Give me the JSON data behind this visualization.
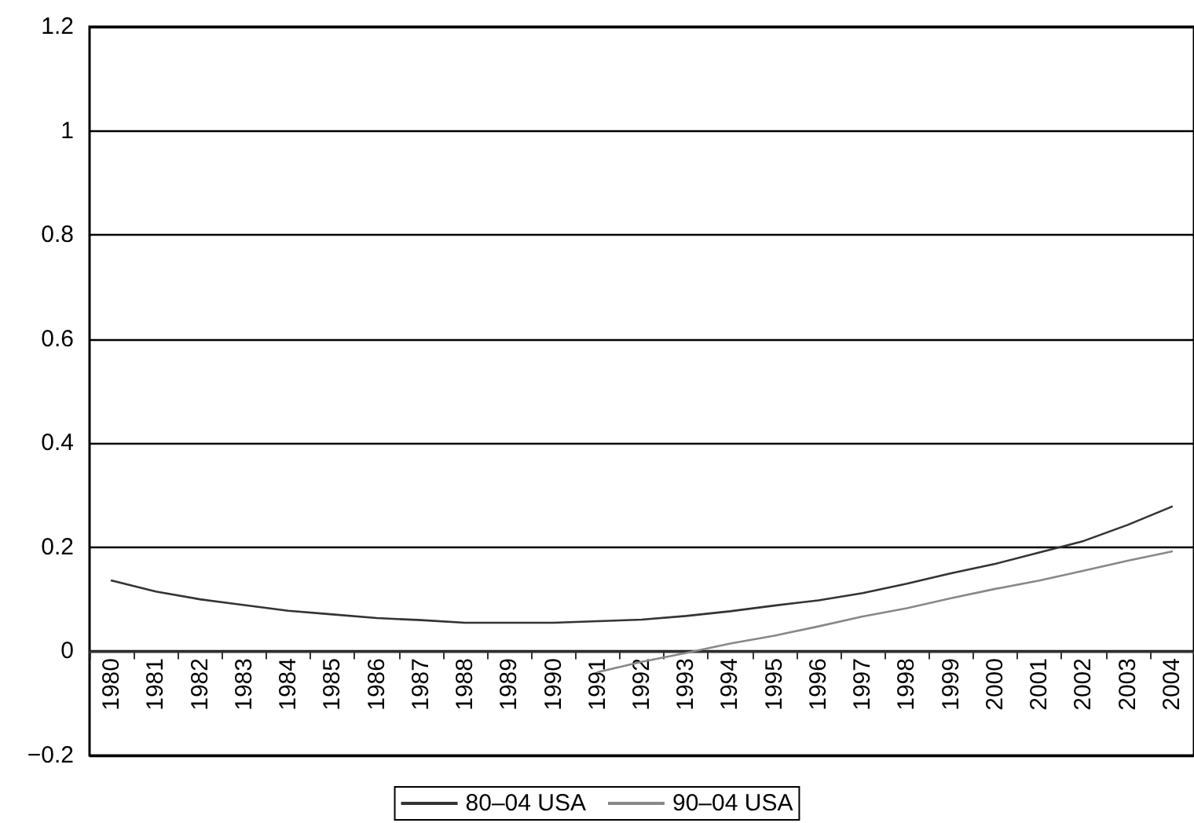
{
  "chart_data": {
    "type": "line",
    "categories": [
      "1980",
      "1981",
      "1982",
      "1983",
      "1984",
      "1985",
      "1986",
      "1987",
      "1988",
      "1989",
      "1990",
      "1991",
      "1992",
      "1993",
      "1994",
      "1995",
      "1996",
      "1997",
      "1998",
      "1999",
      "2000",
      "2001",
      "2002",
      "2003",
      "2004"
    ],
    "series": [
      {
        "name": "80–04 USA",
        "color": "#333333",
        "values": [
          0.136,
          0.115,
          0.1,
          0.089,
          0.078,
          0.071,
          0.064,
          0.06,
          0.055,
          0.055,
          0.055,
          0.058,
          0.061,
          0.068,
          0.077,
          0.088,
          0.098,
          0.112,
          0.13,
          0.15,
          0.168,
          0.19,
          0.212,
          0.243,
          0.278
        ]
      },
      {
        "name": "90–04 USA",
        "color": "#888888",
        "values": [
          null,
          null,
          null,
          null,
          null,
          null,
          null,
          null,
          null,
          null,
          null,
          -0.04,
          -0.02,
          -0.003,
          0.015,
          0.03,
          0.048,
          0.067,
          0.083,
          0.102,
          0.12,
          0.136,
          0.155,
          0.174,
          0.192
        ]
      }
    ],
    "ylim": [
      -0.2,
      1.2
    ],
    "yticks": [
      {
        "value": -0.2,
        "label": "−0.2"
      },
      0,
      0.2,
      0.4,
      0.6,
      0.8,
      1,
      1.2
    ],
    "grid": "y",
    "legend": "bottom",
    "marker": "none",
    "line_style": "solid"
  }
}
